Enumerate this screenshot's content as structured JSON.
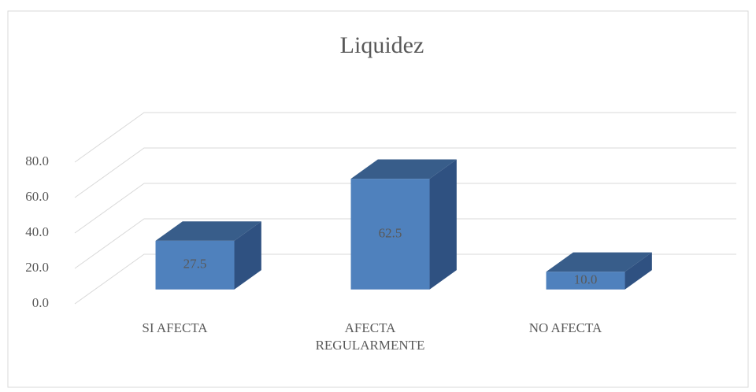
{
  "chart_data": {
    "type": "bar3d",
    "title": "Liquidez",
    "categories": [
      "SI AFECTA",
      "AFECTA REGULARMENTE",
      "NO AFECTA"
    ],
    "values": [
      27.5,
      62.5,
      10.0
    ],
    "value_labels": [
      "27.5",
      "62.5",
      "10.0"
    ],
    "color": "#4f81bd",
    "ylim": [
      0,
      80
    ],
    "yticks": [
      {
        "value": 0,
        "label": "0.0"
      },
      {
        "value": 20,
        "label": "20.0"
      },
      {
        "value": 40,
        "label": "40.0"
      },
      {
        "value": 60,
        "label": "60.0"
      },
      {
        "value": 80,
        "label": "80.0"
      }
    ],
    "grid": true
  }
}
